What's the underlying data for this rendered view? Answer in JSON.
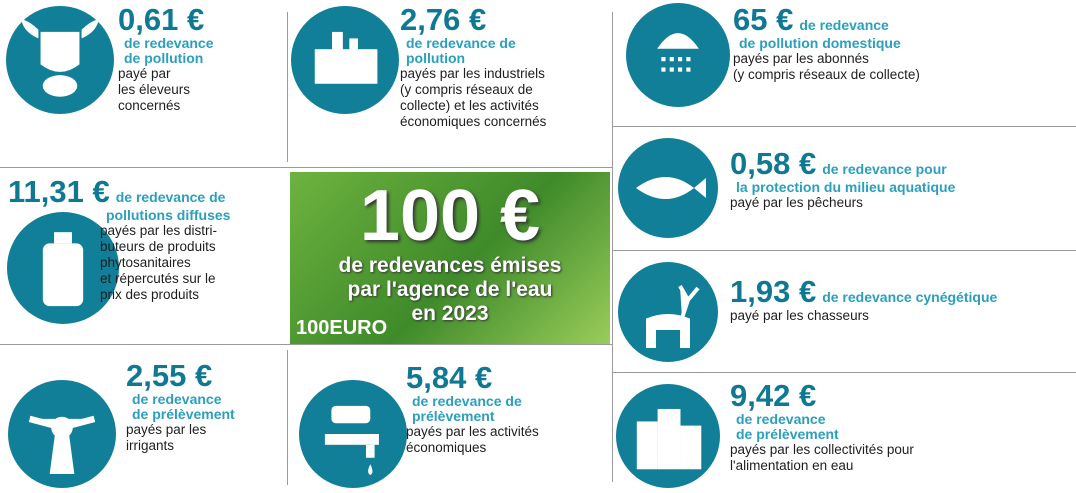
{
  "items": [
    {
      "amount": "0,61 €",
      "label": [
        "de redevance",
        "de pollution"
      ],
      "payer": [
        "payé par",
        "les éleveurs",
        "concernés"
      ]
    },
    {
      "amount": "2,76 €",
      "label": [
        "de redevance de",
        "pollution"
      ],
      "payer": [
        "payés par les industriels",
        "(y compris réseaux de",
        "collecte) et les activités",
        "économiques concernés"
      ]
    },
    {
      "amount": "65 €",
      "label": [
        "de redevance",
        "de pollution domestique"
      ],
      "payer": [
        "payés par les abonnés",
        "(y compris réseaux de collecte)"
      ]
    },
    {
      "amount": "11,31 €",
      "label": [
        "de redevance de",
        "pollutions diffuses"
      ],
      "payer": [
        "payés par les distri-",
        "buteurs de produits",
        "phytosanitaires",
        "et répercutés sur le",
        "prix des produits"
      ]
    },
    {
      "amount": "0,58 €",
      "label": [
        "de redevance pour",
        "la protection du milieu aquatique"
      ],
      "payer": [
        "payé par les pêcheurs"
      ]
    },
    {
      "amount": "1,93 €",
      "label": [
        "de redevance cynégétique"
      ],
      "payer": [
        "payé par les chasseurs"
      ]
    },
    {
      "amount": "2,55 €",
      "label": [
        "de redevance",
        "de prélèvement"
      ],
      "payer": [
        "payés par les",
        "irrigants"
      ]
    },
    {
      "amount": "5,84 €",
      "label": [
        "de redevance de",
        "prélèvement"
      ],
      "payer": [
        "payés par les activités",
        "économiques"
      ]
    },
    {
      "amount": "9,42 €",
      "label": [
        "de redevance",
        "de prélèvement"
      ],
      "payer": [
        "payés par les collectivités  pour",
        "l'alimentation en eau"
      ]
    }
  ],
  "center": {
    "headline": "100 €",
    "subtitle": [
      "de redevances émises",
      "par l'agence de l'eau",
      "en 2023"
    ],
    "note": "100EURO"
  }
}
